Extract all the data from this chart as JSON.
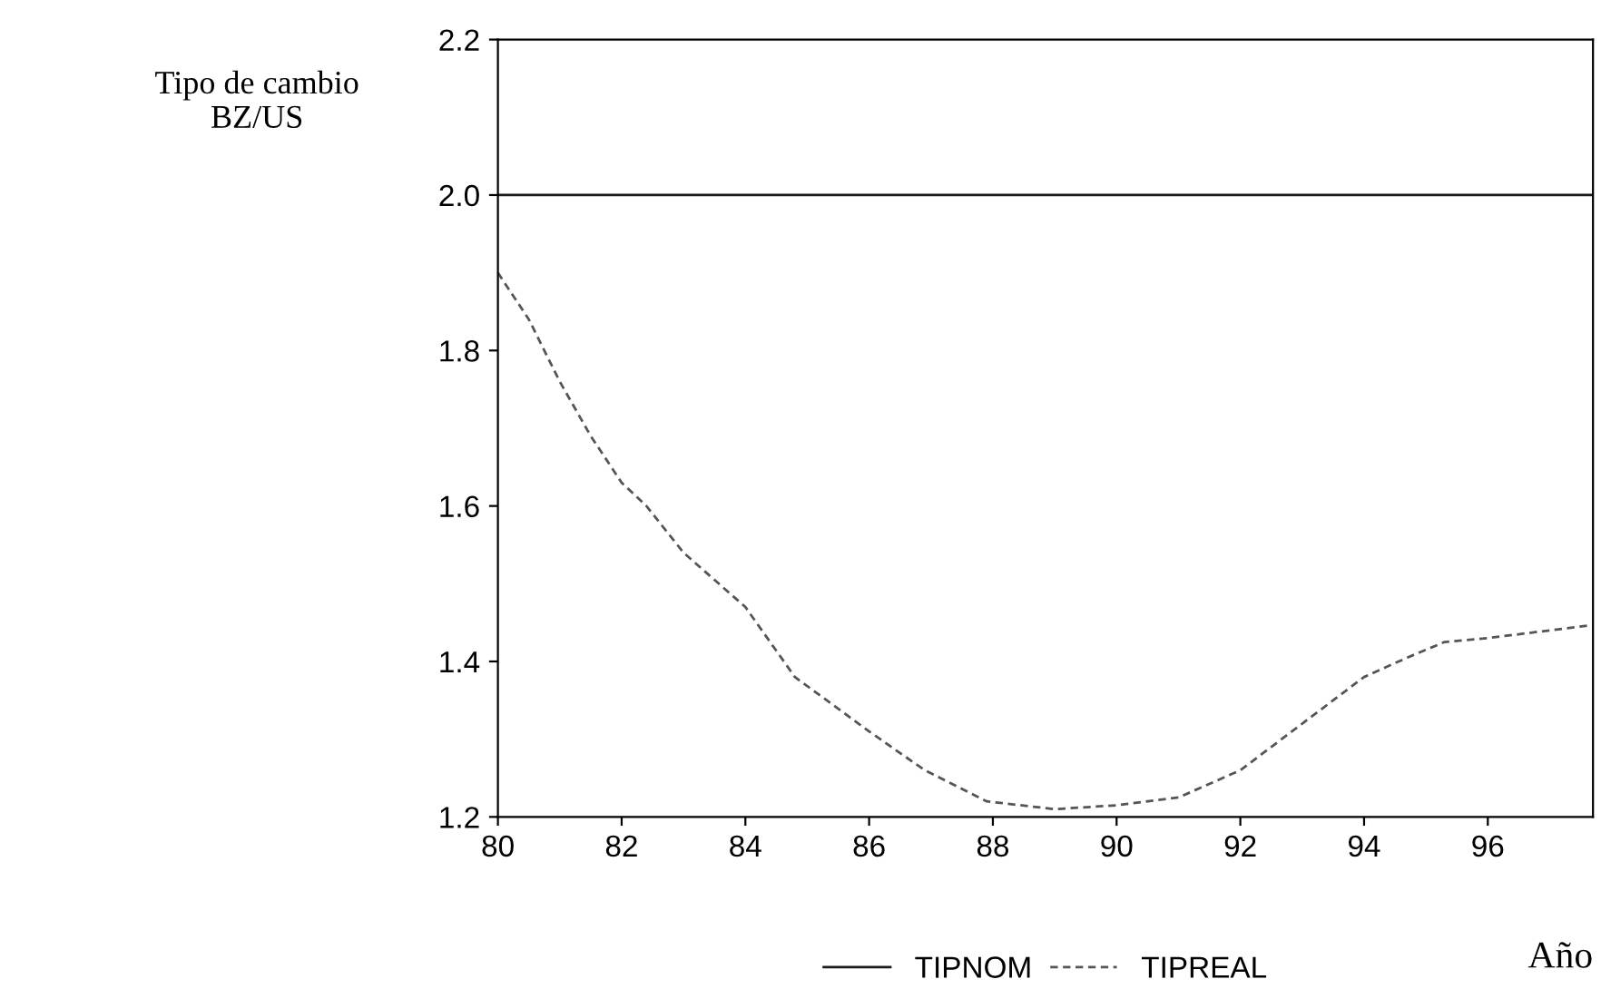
{
  "chart_data": {
    "type": "line",
    "ylabel": "Tipo de cambio\nBZ/US",
    "xlabel": "Año",
    "xlim": [
      80,
      97.7
    ],
    "xticks": [
      80,
      82,
      84,
      86,
      88,
      90,
      92,
      94,
      96
    ],
    "ylim": [
      1.2,
      2.2
    ],
    "yticks": [
      {
        "value": 1.2,
        "label": "1.2"
      },
      {
        "value": 1.4,
        "label": "1.4"
      },
      {
        "value": 1.6,
        "label": "1.6"
      },
      {
        "value": 1.8,
        "label": "1.8"
      },
      {
        "value": 2.0,
        "label": "2.0"
      },
      {
        "value": 2.2,
        "label": "2.2"
      }
    ],
    "grid": false,
    "legend": "bottom",
    "series": [
      {
        "name": "TIPNOM",
        "color": "#1a1a1a",
        "line_style": "solid",
        "x": [
          80,
          97.7
        ],
        "values": [
          2.0,
          2.0
        ]
      },
      {
        "name": "TIPREAL",
        "color": "#555555",
        "line_style": "dashed",
        "x": [
          80,
          80.5,
          81,
          81.5,
          82,
          82.4,
          83,
          84,
          84.8,
          86,
          86.9,
          87.9,
          89,
          90,
          91,
          92,
          93,
          94,
          94.7,
          95.3,
          96,
          97,
          97.7
        ],
        "values": [
          1.9,
          1.84,
          1.76,
          1.69,
          1.63,
          1.6,
          1.54,
          1.47,
          1.38,
          1.31,
          1.26,
          1.22,
          1.21,
          1.215,
          1.225,
          1.26,
          1.32,
          1.38,
          1.405,
          1.425,
          1.43,
          1.44,
          1.447
        ]
      }
    ]
  }
}
